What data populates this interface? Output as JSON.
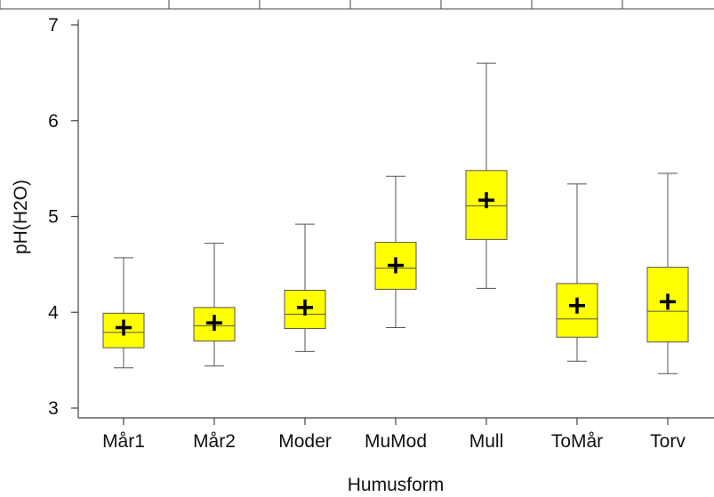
{
  "chart_data": {
    "type": "box",
    "xlabel": "Humusform",
    "ylabel": "pH(H2O)",
    "ylim": [
      2.9,
      7.1
    ],
    "yticks": [
      3,
      4,
      5,
      6,
      7
    ],
    "categories": [
      "Mår1",
      "Mår2",
      "Moder",
      "MuMod",
      "Mull",
      "ToMår",
      "Torv"
    ],
    "boxes": [
      {
        "category": "Mår1",
        "whisker_low": 3.42,
        "q1": 3.63,
        "median": 3.79,
        "q3": 3.99,
        "whisker_high": 4.57,
        "mean": 3.84
      },
      {
        "category": "Mår2",
        "whisker_low": 3.44,
        "q1": 3.7,
        "median": 3.86,
        "q3": 4.05,
        "whisker_high": 4.72,
        "mean": 3.89
      },
      {
        "category": "Moder",
        "whisker_low": 3.59,
        "q1": 3.83,
        "median": 3.98,
        "q3": 4.23,
        "whisker_high": 4.92,
        "mean": 4.05
      },
      {
        "category": "MuMod",
        "whisker_low": 3.84,
        "q1": 4.24,
        "median": 4.46,
        "q3": 4.73,
        "whisker_high": 5.42,
        "mean": 4.49
      },
      {
        "category": "Mull",
        "whisker_low": 4.25,
        "q1": 4.76,
        "median": 5.11,
        "q3": 5.48,
        "whisker_high": 6.6,
        "mean": 5.17
      },
      {
        "category": "ToMår",
        "whisker_low": 3.49,
        "q1": 3.74,
        "median": 3.93,
        "q3": 4.3,
        "whisker_high": 5.34,
        "mean": 4.07
      },
      {
        "category": "Torv",
        "whisker_low": 3.36,
        "q1": 3.69,
        "median": 4.01,
        "q3": 4.47,
        "whisker_high": 5.45,
        "mean": 4.11
      }
    ],
    "colors": {
      "box_fill": "#ffff00",
      "box_edge": "#555555",
      "whisker": "#555555",
      "mean_marker": "#000000",
      "axis": "#444444",
      "text": "#111111"
    },
    "mean_marker": "plus",
    "grid": false,
    "legend": "none"
  }
}
